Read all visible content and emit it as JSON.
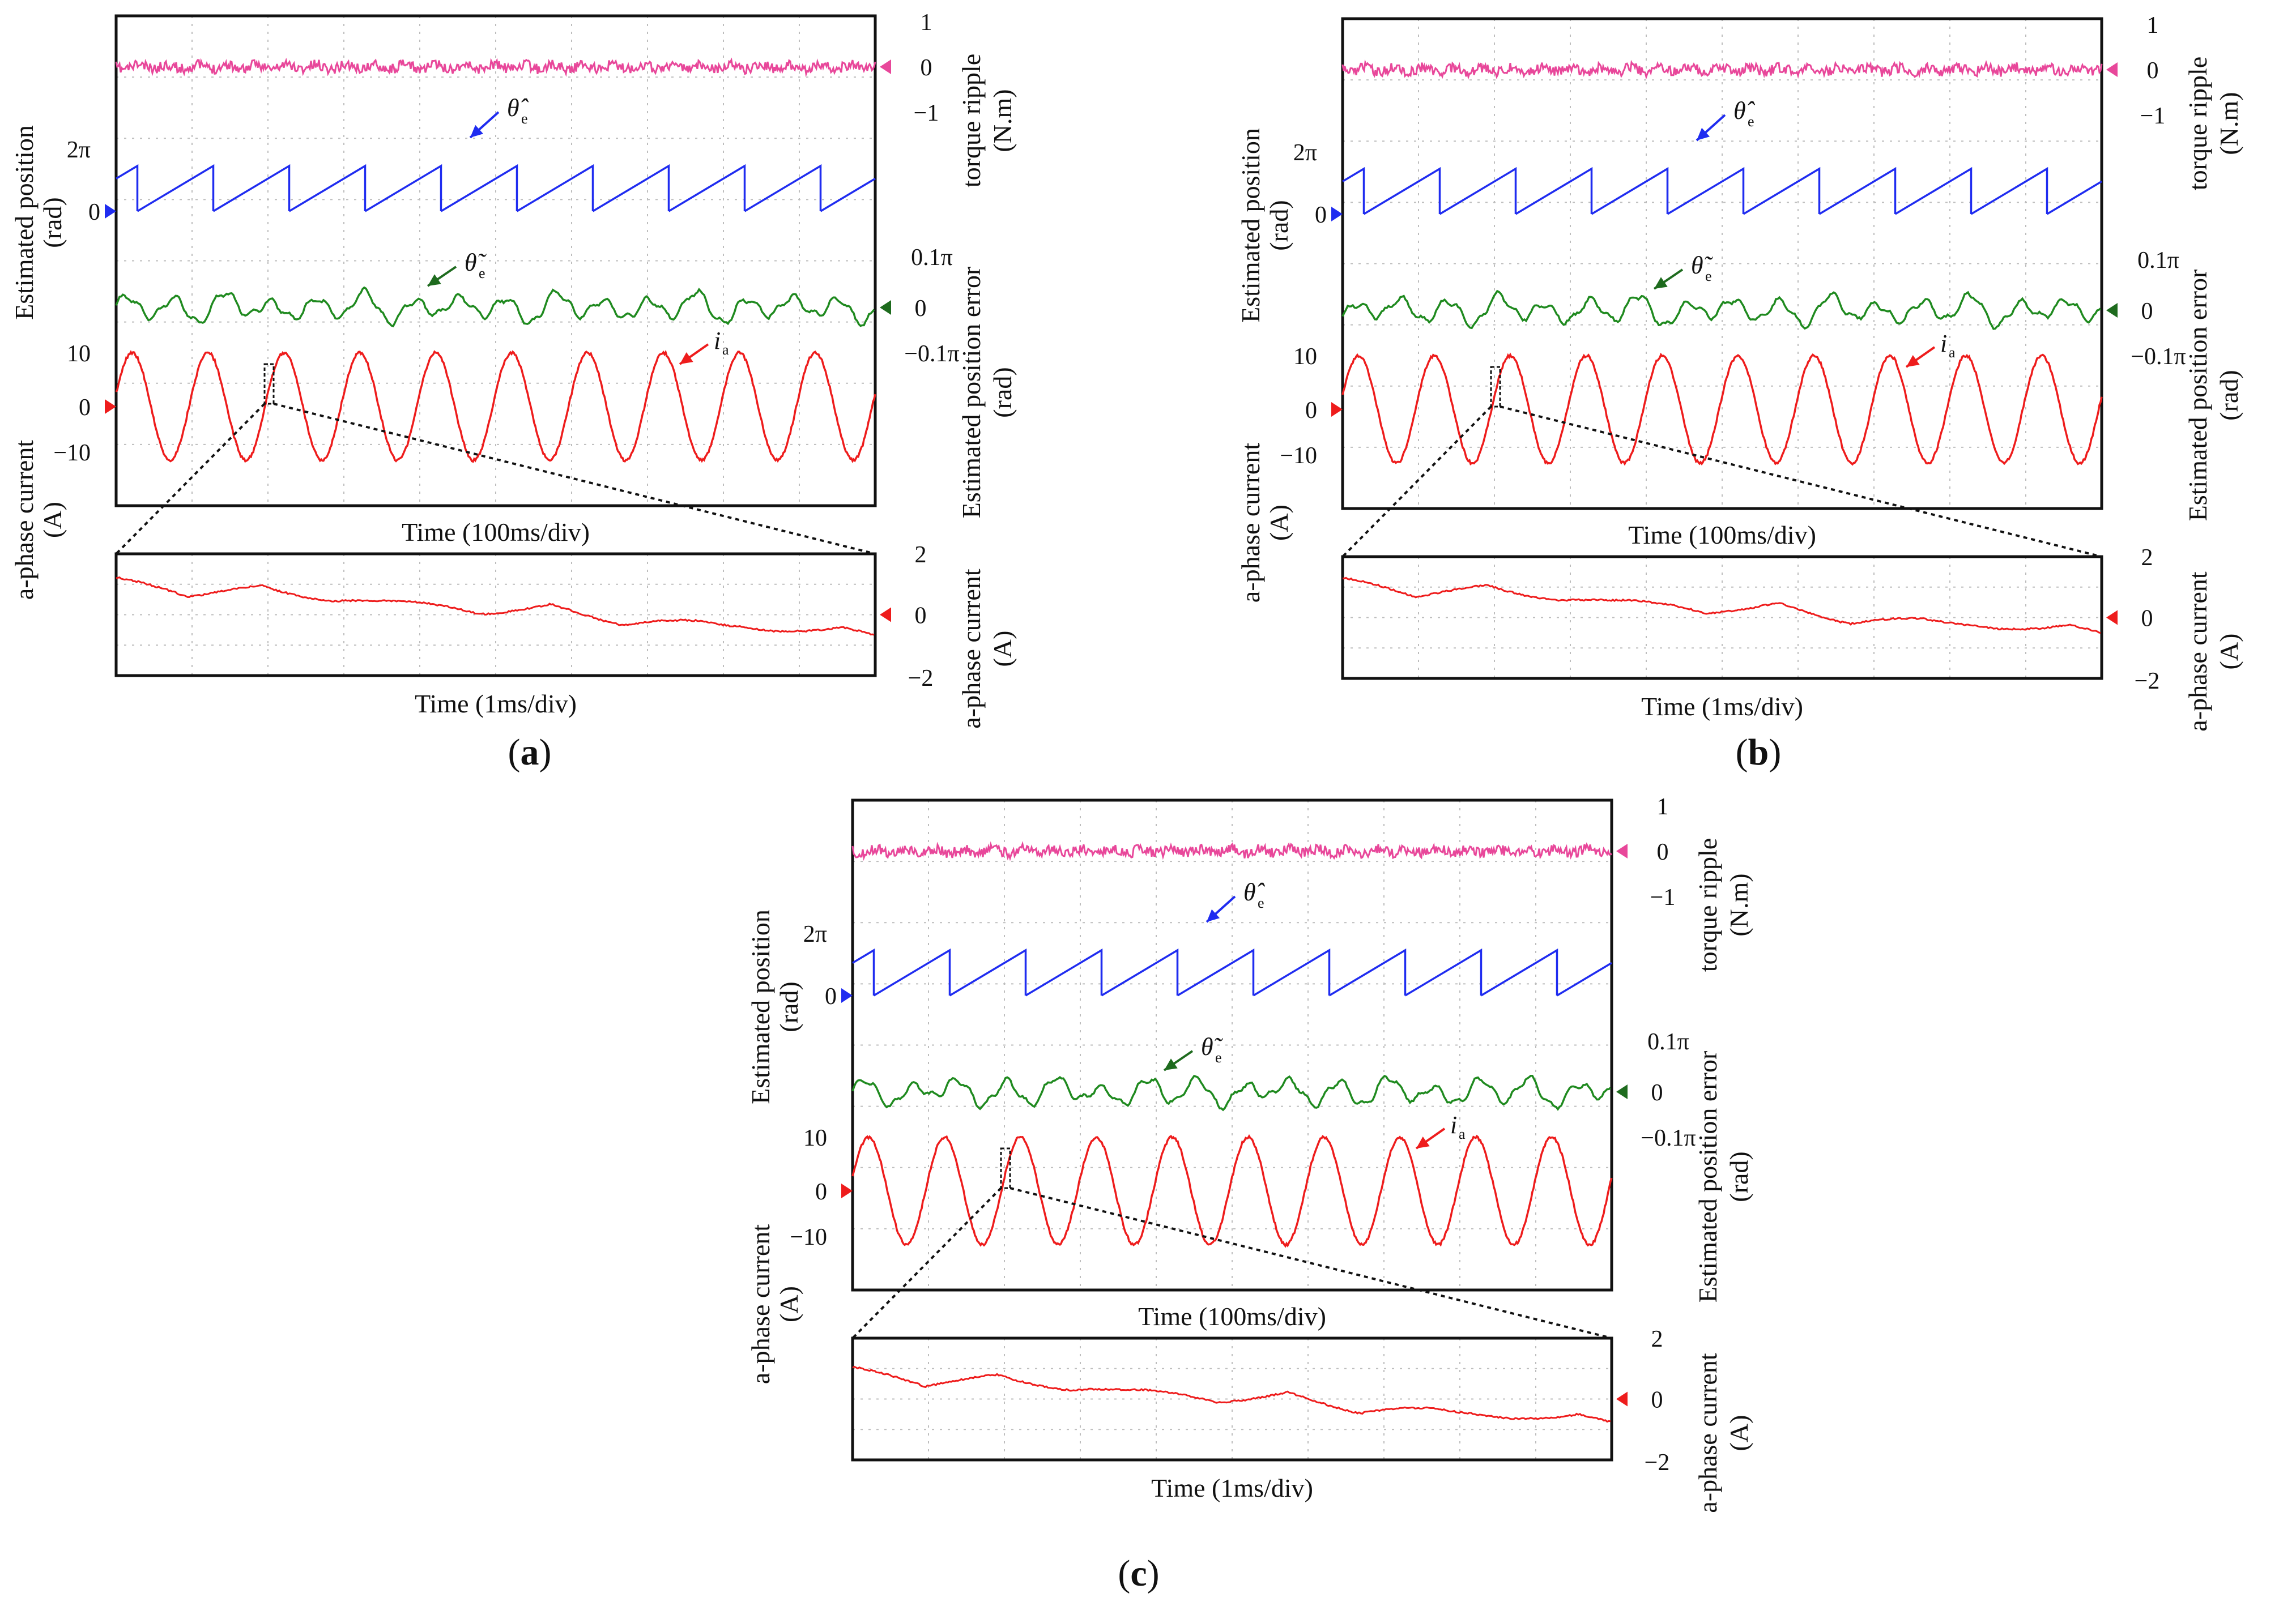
{
  "chart_data": [
    {
      "type": "line",
      "panel": "(a)",
      "channels": [
        {
          "name": "torque ripple",
          "color": "#e8479a",
          "axis_values": [
            "1",
            "0",
            "−1"
          ],
          "unit": "N.m",
          "amplitude": 0.06
        },
        {
          "name": "Estimated position",
          "color": "#1f2cf0",
          "axis_values": [
            "2π",
            "0"
          ],
          "unit": "rad",
          "periods": 10
        },
        {
          "name": "Estimated position error",
          "color": "#1f8a1f",
          "axis_values": [
            "0.1π",
            "0",
            "−0.1π"
          ],
          "unit": "rad"
        },
        {
          "name": "a-phase current",
          "color": "#ee1c1c",
          "axis_values": [
            "10",
            "0",
            "−10"
          ],
          "unit": "A",
          "amplitude": 11,
          "periods": 10
        }
      ],
      "xlabel": "Time (100ms/div)",
      "zoom": {
        "xlabel": "Time (1ms/div)",
        "ylabel": "a-phase current (A)",
        "axis_values": [
          "2",
          "0",
          "−2"
        ],
        "trend_from": 1.2,
        "trend_to": -0.8
      }
    },
    {
      "type": "line",
      "panel": "(b)",
      "channels": [
        {
          "name": "torque ripple",
          "color": "#e8479a",
          "axis_values": [
            "1",
            "0",
            "−1"
          ],
          "unit": "N.m",
          "amplitude": 0.06
        },
        {
          "name": "Estimated position",
          "color": "#1f2cf0",
          "axis_values": [
            "2π",
            "0"
          ],
          "unit": "rad",
          "periods": 10
        },
        {
          "name": "Estimated position error",
          "color": "#1f8a1f",
          "axis_values": [
            "0.1π",
            "0",
            "−0.1π"
          ],
          "unit": "rad"
        },
        {
          "name": "a-phase current",
          "color": "#ee1c1c",
          "axis_values": [
            "10",
            "0",
            "−10"
          ],
          "unit": "A",
          "amplitude": 11,
          "periods": 10
        }
      ],
      "xlabel": "Time (100ms/div)",
      "zoom": {
        "xlabel": "Time (1ms/div)",
        "ylabel": "a-phase current (A)",
        "axis_values": [
          "2",
          "0",
          "−2"
        ],
        "trend_from": 1.3,
        "trend_to": -0.6
      }
    },
    {
      "type": "line",
      "panel": "(c)",
      "channels": [
        {
          "name": "torque ripple",
          "color": "#e8479a",
          "axis_values": [
            "1",
            "0",
            "−1"
          ],
          "unit": "N.m",
          "amplitude": 0.06
        },
        {
          "name": "Estimated position",
          "color": "#1f2cf0",
          "axis_values": [
            "2π",
            "0"
          ],
          "unit": "rad",
          "periods": 10
        },
        {
          "name": "Estimated position error",
          "color": "#1f8a1f",
          "axis_values": [
            "0.1π",
            "0",
            "−0.1π"
          ],
          "unit": "rad"
        },
        {
          "name": "a-phase current",
          "color": "#ee1c1c",
          "axis_values": [
            "10",
            "0",
            "−10"
          ],
          "unit": "A",
          "amplitude": 11,
          "periods": 10
        }
      ],
      "xlabel": "Time (100ms/div)",
      "zoom": {
        "xlabel": "Time (1ms/div)",
        "ylabel": "a-phase current (A)",
        "axis_values": [
          "2",
          "0",
          "−2"
        ],
        "trend_from": 1.0,
        "trend_to": -0.9
      }
    }
  ],
  "labels": {
    "left_pos_title": "Estimated position",
    "left_pos_unit": "(rad)",
    "left_cur_title": "a-phase current",
    "left_cur_unit": "(A)",
    "right_torque_title": "torque ripple",
    "right_torque_unit": "(N.m)",
    "right_err_title": "Estimated position error",
    "right_err_unit": "(rad)",
    "zoom_right_title": "a-phase current",
    "zoom_right_unit": "(A)",
    "theta_hat": "θ̂",
    "theta_tilde": "θ̃",
    "subscript_e": "e",
    "i_symbol": "i",
    "subscript_a": "a",
    "zero_marker": "0"
  }
}
